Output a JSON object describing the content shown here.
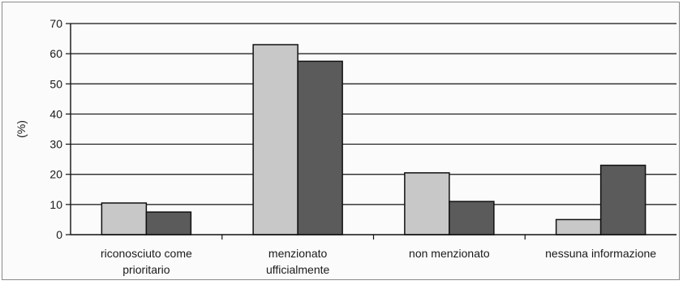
{
  "chart_data": {
    "type": "bar",
    "ylabel": "(%)",
    "xlabel": "",
    "ylim": [
      0,
      70
    ],
    "yticks": [
      0,
      10,
      20,
      30,
      40,
      50,
      60,
      70
    ],
    "grid": true,
    "categories": [
      [
        "riconosciuto come",
        "prioritario"
      ],
      [
        "menzionato",
        "ufficialmente"
      ],
      [
        "non menzionato"
      ],
      [
        "nessuna informazione"
      ]
    ],
    "series": [
      {
        "values": [
          10.5,
          63,
          20.5,
          5
        ],
        "color": "#c8c8c8"
      },
      {
        "values": [
          7.5,
          57.5,
          11,
          23
        ],
        "color": "#5b5b5b"
      }
    ]
  }
}
